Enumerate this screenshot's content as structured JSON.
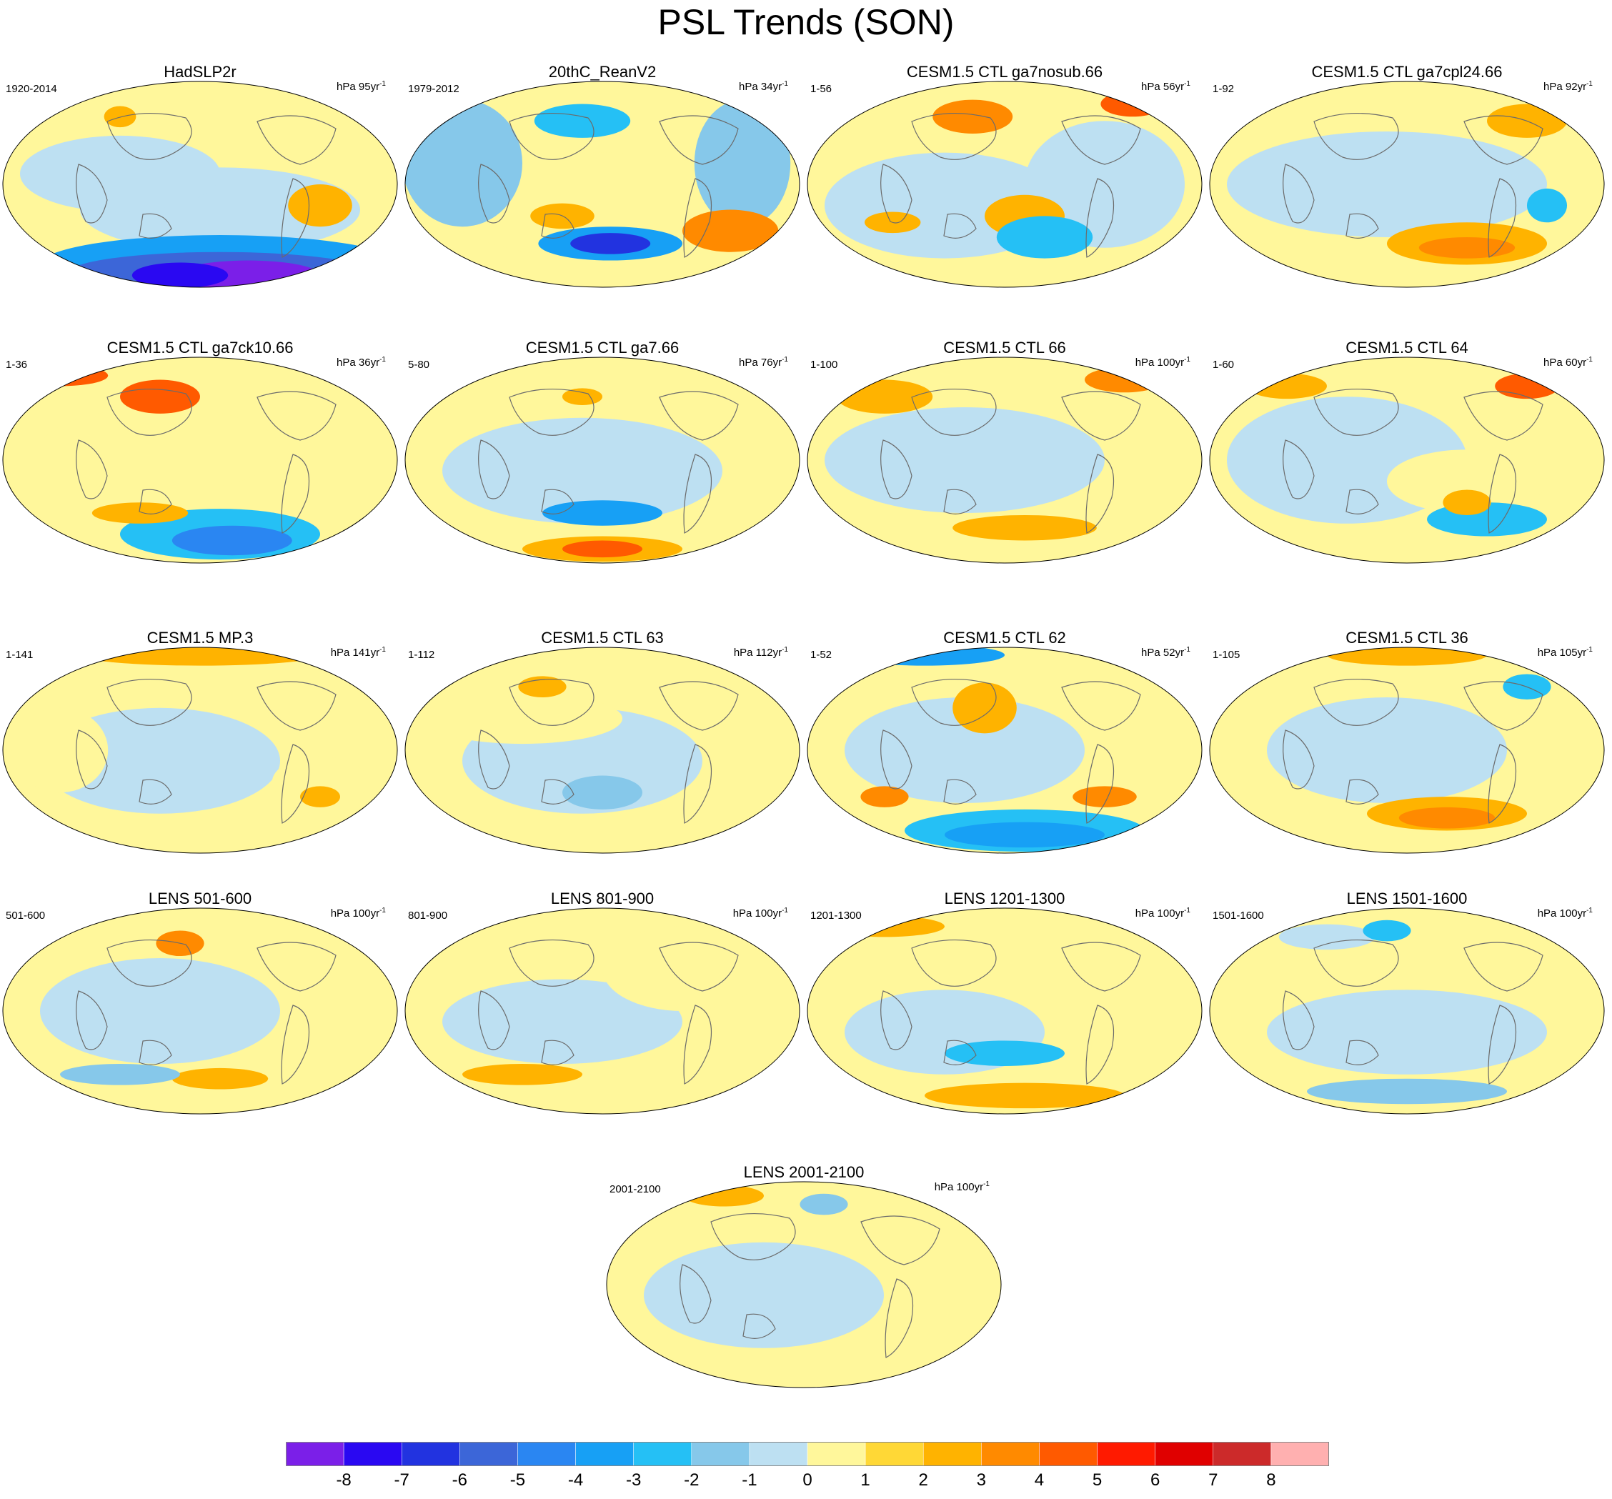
{
  "title": "PSL Trends (SON)",
  "panels": [
    {
      "title": "HadSLP2r",
      "left": "1920-2014",
      "unit": "hPa 95yr",
      "pattern": "had"
    },
    {
      "title": "20thC_ReanV2",
      "left": "1979-2012",
      "unit": "hPa 34yr",
      "pattern": "rean"
    },
    {
      "title": "CESM1.5 CTL ga7nosub.66",
      "left": "1-56",
      "unit": "hPa 56yr",
      "pattern": "a"
    },
    {
      "title": "CESM1.5 CTL ga7cpl24.66",
      "left": "1-92",
      "unit": "hPa 92yr",
      "pattern": "b"
    },
    {
      "title": "CESM1.5 CTL ga7ck10.66",
      "left": "1-36",
      "unit": "hPa 36yr",
      "pattern": "c"
    },
    {
      "title": "CESM1.5 CTL ga7.66",
      "left": "5-80",
      "unit": "hPa 76yr",
      "pattern": "d"
    },
    {
      "title": "CESM1.5 CTL 66",
      "left": "1-100",
      "unit": "hPa 100yr",
      "pattern": "e"
    },
    {
      "title": "CESM1.5 CTL 64",
      "left": "1-60",
      "unit": "hPa 60yr",
      "pattern": "f"
    },
    {
      "title": "CESM1.5 MP.3",
      "left": "1-141",
      "unit": "hPa 141yr",
      "pattern": "g"
    },
    {
      "title": "CESM1.5 CTL 63",
      "left": "1-112",
      "unit": "hPa 112yr",
      "pattern": "h"
    },
    {
      "title": "CESM1.5 CTL 62",
      "left": "1-52",
      "unit": "hPa 52yr",
      "pattern": "i"
    },
    {
      "title": "CESM1.5 CTL 36",
      "left": "1-105",
      "unit": "hPa 105yr",
      "pattern": "j"
    },
    {
      "title": "LENS 501-600",
      "left": "501-600",
      "unit": "hPa 100yr",
      "pattern": "k"
    },
    {
      "title": "LENS 801-900",
      "left": "801-900",
      "unit": "hPa 100yr",
      "pattern": "l"
    },
    {
      "title": "LENS 1201-1300",
      "left": "1201-1300",
      "unit": "hPa 100yr",
      "pattern": "m"
    },
    {
      "title": "LENS 1501-1600",
      "left": "1501-1600",
      "unit": "hPa 100yr",
      "pattern": "n"
    },
    {
      "title": "LENS 2001-2100",
      "left": "2001-2100",
      "unit": "hPa 100yr",
      "pattern": "o"
    }
  ],
  "unit_exponent": "-1",
  "colorbar": {
    "colors": [
      "#7b1fe8",
      "#2a08f2",
      "#2233e0",
      "#3c66d8",
      "#2a86f2",
      "#17a0f5",
      "#25c0f5",
      "#86c8ea",
      "#bde0f2",
      "#fff79b",
      "#ffd836",
      "#ffb300",
      "#ff8a00",
      "#ff5a00",
      "#ff1a00",
      "#e00000",
      "#cc2a2a",
      "#ffb0b0"
    ],
    "labels": [
      "-8",
      "-7",
      "-6",
      "-5",
      "-4",
      "-3",
      "-2",
      "-1",
      "0",
      "1",
      "2",
      "3",
      "4",
      "5",
      "6",
      "7",
      "8"
    ]
  }
}
